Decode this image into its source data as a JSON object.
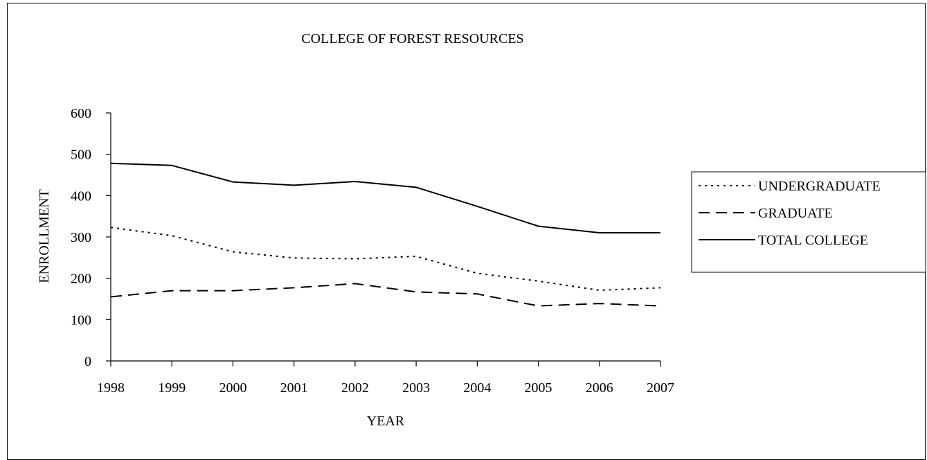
{
  "chart_data": {
    "type": "line",
    "title": "COLLEGE OF FOREST RESOURCES",
    "xlabel": "YEAR",
    "ylabel": "ENROLLMENT",
    "categories": [
      "1998",
      "1999",
      "2000",
      "2001",
      "2002",
      "2003",
      "2004",
      "2005",
      "2006",
      "2007"
    ],
    "ylim": [
      0,
      600
    ],
    "yticks": [
      0,
      100,
      200,
      300,
      400,
      500,
      600
    ],
    "grid": false,
    "legend_position": "right",
    "series": [
      {
        "name": "UNDERGRADUATE",
        "style": "dotted",
        "values": [
          323,
          303,
          264,
          249,
          247,
          253,
          212,
          193,
          171,
          177
        ]
      },
      {
        "name": "GRADUATE",
        "style": "dashed",
        "values": [
          155,
          170,
          170,
          177,
          187,
          167,
          162,
          133,
          139,
          133
        ]
      },
      {
        "name": "TOTAL COLLEGE",
        "style": "solid",
        "values": [
          478,
          473,
          433,
          425,
          434,
          420,
          374,
          326,
          310,
          310
        ]
      }
    ]
  }
}
